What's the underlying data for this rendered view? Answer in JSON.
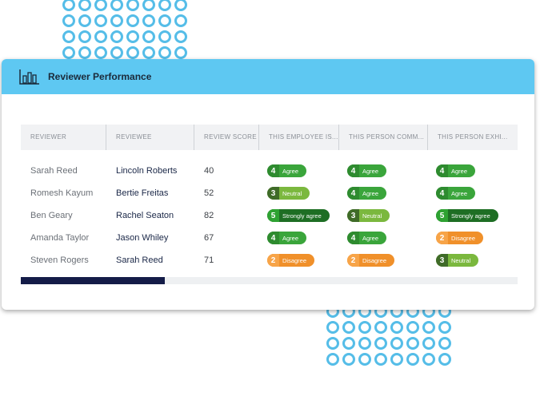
{
  "header": {
    "title": "Reviewer Performance",
    "icon": "bar-chart-icon"
  },
  "table": {
    "columns": [
      "REVIEWER",
      "REVIEWEE",
      "REVIEW SCORE",
      "THIS EMPLOYEE IS...",
      "THIS PERSON COMM...",
      "THIS PERSON EXHI..."
    ],
    "rows": [
      {
        "reviewer": "Sarah Reed",
        "reviewee": "Lincoln Roberts",
        "score": "40",
        "ratings": [
          {
            "num": "4",
            "label": "Agree",
            "kind": "agree"
          },
          {
            "num": "4",
            "label": "Agree",
            "kind": "agree"
          },
          {
            "num": "4",
            "label": "Agree",
            "kind": "agree"
          }
        ]
      },
      {
        "reviewer": "Romesh Kayum",
        "reviewee": "Bertie Freitas",
        "score": "52",
        "ratings": [
          {
            "num": "3",
            "label": "Neutral",
            "kind": "neutral"
          },
          {
            "num": "4",
            "label": "Agree",
            "kind": "agree"
          },
          {
            "num": "4",
            "label": "Agree",
            "kind": "agree"
          }
        ]
      },
      {
        "reviewer": "Ben Geary",
        "reviewee": "Rachel Seaton",
        "score": "82",
        "ratings": [
          {
            "num": "5",
            "label": "Strongly agree",
            "kind": "strong"
          },
          {
            "num": "3",
            "label": "Neutral",
            "kind": "neutral"
          },
          {
            "num": "5",
            "label": "Strongly agree",
            "kind": "strong"
          }
        ]
      },
      {
        "reviewer": "Amanda Taylor",
        "reviewee": "Jason Whiley",
        "score": "67",
        "ratings": [
          {
            "num": "4",
            "label": "Agree",
            "kind": "agree"
          },
          {
            "num": "4",
            "label": "Agree",
            "kind": "agree"
          },
          {
            "num": "2",
            "label": "Disagree",
            "kind": "disagree"
          }
        ]
      },
      {
        "reviewer": "Steven Rogers",
        "reviewee": "Sarah Reed",
        "score": "71",
        "ratings": [
          {
            "num": "2",
            "label": "Disagree",
            "kind": "disagree"
          },
          {
            "num": "2",
            "label": "Disagree",
            "kind": "disagree"
          },
          {
            "num": "3",
            "label": "Neutral",
            "kind": "neutral"
          }
        ]
      }
    ]
  },
  "scroll": {
    "position_fraction": 0.29
  },
  "colors": {
    "header": "#5ec8f2",
    "dots": "#55bde8",
    "agree": "#3aa53b",
    "neutral": "#7bb83e",
    "strongly_agree": "#1e6e24",
    "disagree": "#f0902a",
    "scroll_thumb": "#141c48"
  }
}
